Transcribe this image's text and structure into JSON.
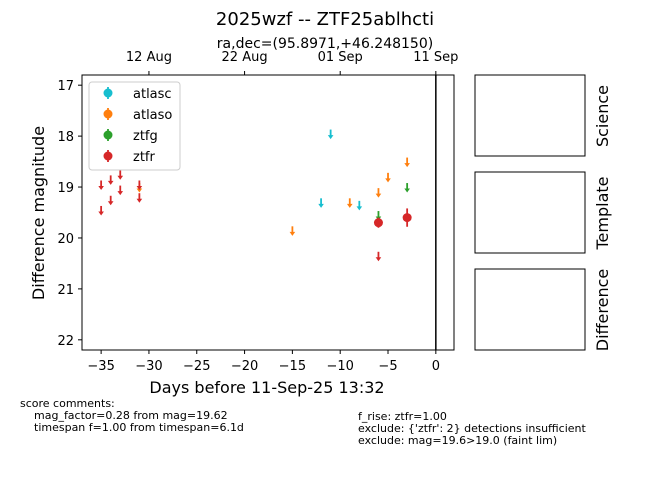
{
  "chart_data": {
    "type": "scatter",
    "title": "2025wzf -- ZTF25ablhcti",
    "subtitle": "ra,dec=(95.8971,+46.248150)",
    "xlabel": "Days before 11-Sep-25 13:32",
    "ylabel": "Difference magnitude",
    "xlim": [
      -37,
      1.9
    ],
    "ylim": [
      22.2,
      16.8
    ],
    "x_ticks": [
      -35,
      -30,
      -25,
      -20,
      -15,
      -10,
      -5,
      0
    ],
    "x_tick_labels": [
      "−35",
      "−30",
      "−25",
      "−20",
      "−15",
      "−10",
      "−5",
      "0"
    ],
    "y_ticks": [
      17,
      18,
      19,
      20,
      21,
      22
    ],
    "y_tick_labels": [
      "17",
      "18",
      "19",
      "20",
      "21",
      "22"
    ],
    "top_axis_ticks": [
      -30,
      -20,
      -10,
      0
    ],
    "top_axis_labels": [
      "12 Aug",
      "22 Aug",
      "01 Sep",
      "11 Sep"
    ],
    "vline_x": 0,
    "series": [
      {
        "name": "atlasc",
        "color": "#17becf",
        "upper_limits": [
          {
            "x": -11,
            "y": 17.95
          },
          {
            "x": -12,
            "y": 19.3
          },
          {
            "x": -8,
            "y": 19.35
          }
        ],
        "detections": []
      },
      {
        "name": "atlaso",
        "color": "#ff7f0e",
        "upper_limits": [
          {
            "x": -31,
            "y": 19.0
          },
          {
            "x": -15,
            "y": 19.85
          },
          {
            "x": -9,
            "y": 19.3
          },
          {
            "x": -6,
            "y": 19.1
          },
          {
            "x": -5,
            "y": 18.8
          },
          {
            "x": -3,
            "y": 18.5
          }
        ],
        "detections": []
      },
      {
        "name": "ztfg",
        "color": "#2ca02c",
        "upper_limits": [
          {
            "x": -6,
            "y": 19.55
          },
          {
            "x": -3,
            "y": 19.0
          }
        ],
        "detections": []
      },
      {
        "name": "ztfr",
        "color": "#d62728",
        "upper_limits": [
          {
            "x": -35,
            "y": 18.95
          },
          {
            "x": -35,
            "y": 19.45
          },
          {
            "x": -34,
            "y": 18.85
          },
          {
            "x": -34,
            "y": 19.25
          },
          {
            "x": -33,
            "y": 18.75
          },
          {
            "x": -33,
            "y": 19.05
          },
          {
            "x": -31,
            "y": 18.95
          },
          {
            "x": -31,
            "y": 19.2
          },
          {
            "x": -6,
            "y": 20.35
          }
        ],
        "detections": [
          {
            "x": -6,
            "y": 19.7,
            "err": 0.1
          },
          {
            "x": -3,
            "y": 19.6,
            "err": 0.18
          }
        ]
      }
    ],
    "legend": [
      "atlasc",
      "atlaso",
      "ztfg",
      "ztfr"
    ],
    "legend_location": "upper-left",
    "side_panels": [
      "Science",
      "Template",
      "Difference"
    ]
  },
  "comments": {
    "header": "score comments:",
    "left": [
      "mag_factor=0.28 from mag=19.62",
      "timespan f=1.00 from timespan=6.1d"
    ],
    "right": [
      "f_rise: ztfr=1.00",
      "exclude: {'ztfr': 2} detections insufficient",
      "exclude: mag=19.6>19.0 (faint lim)"
    ]
  }
}
